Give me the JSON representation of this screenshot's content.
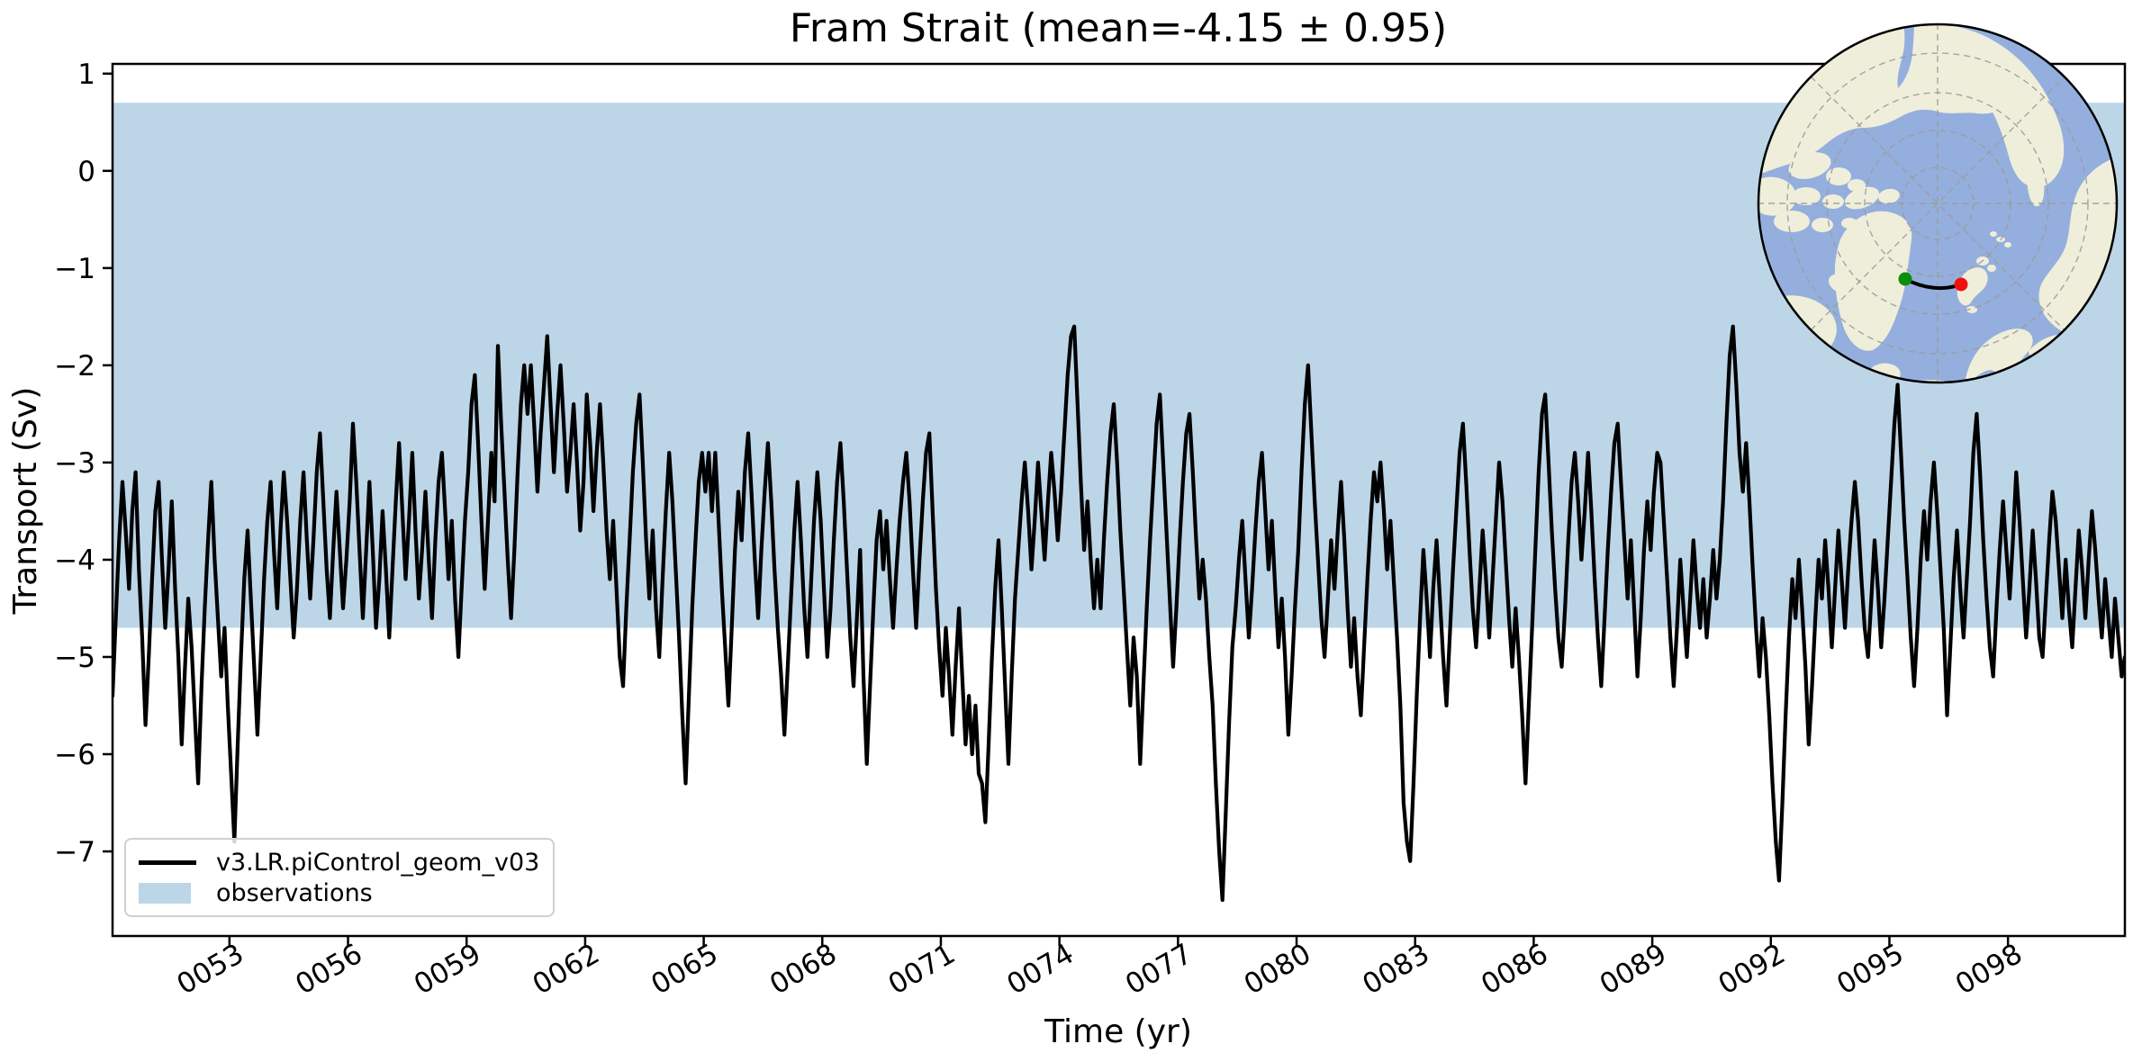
{
  "figure": {
    "background": "#FFFFFF"
  },
  "title": "Fram Strait (mean=-4.15 ± 0.95)",
  "chart_data": {
    "type": "line",
    "title": "Fram Strait (mean=-4.15 ± 0.95)",
    "xlabel": "Time (yr)",
    "ylabel": "Transport (Sv)",
    "xlim": [
      50.042,
      100.958
    ],
    "ylim": [
      -7.87,
      1.1
    ],
    "grid": false,
    "legend_position": "lower left",
    "stats": {
      "mean": -4.15,
      "std": 0.95
    },
    "yticks": [
      {
        "v": 1,
        "label": "1"
      },
      {
        "v": 0,
        "label": "0"
      },
      {
        "v": -1,
        "label": "−1"
      },
      {
        "v": -2,
        "label": "−2"
      },
      {
        "v": -3,
        "label": "−3"
      },
      {
        "v": -4,
        "label": "−4"
      },
      {
        "v": -5,
        "label": "−5"
      },
      {
        "v": -6,
        "label": "−6"
      },
      {
        "v": -7,
        "label": "−7"
      }
    ],
    "xticks": [
      {
        "v": 53,
        "label": "0053"
      },
      {
        "v": 56,
        "label": "0056"
      },
      {
        "v": 59,
        "label": "0059"
      },
      {
        "v": 62,
        "label": "0062"
      },
      {
        "v": 65,
        "label": "0065"
      },
      {
        "v": 68,
        "label": "0068"
      },
      {
        "v": 71,
        "label": "0071"
      },
      {
        "v": 74,
        "label": "0074"
      },
      {
        "v": 77,
        "label": "0077"
      },
      {
        "v": 80,
        "label": "0080"
      },
      {
        "v": 83,
        "label": "0083"
      },
      {
        "v": 86,
        "label": "0086"
      },
      {
        "v": 89,
        "label": "0089"
      },
      {
        "v": 92,
        "label": "0092"
      },
      {
        "v": 95,
        "label": "0095"
      },
      {
        "v": 98,
        "label": "0098"
      }
    ],
    "band": {
      "label": "observations",
      "color": "#BCD6E8",
      "y_min": -4.7,
      "y_max": 0.7
    },
    "series": [
      {
        "name": "v3.LR.piControl_geom_v03",
        "color": "#000000",
        "linewidth": 4.2,
        "x_start": 50.0417,
        "x_step": 0.0833333,
        "values": [
          -5.4,
          -4.6,
          -3.8,
          -3.2,
          -3.7,
          -4.3,
          -3.5,
          -3.1,
          -4.1,
          -4.8,
          -5.7,
          -5.0,
          -4.2,
          -3.5,
          -3.2,
          -4.0,
          -4.7,
          -4.1,
          -3.4,
          -4.3,
          -5.0,
          -5.9,
          -5.1,
          -4.4,
          -4.9,
          -5.6,
          -6.3,
          -5.3,
          -4.5,
          -3.8,
          -3.2,
          -4.0,
          -4.6,
          -5.2,
          -4.7,
          -5.5,
          -6.2,
          -6.9,
          -5.9,
          -5.0,
          -4.2,
          -3.7,
          -4.4,
          -5.1,
          -5.8,
          -5.0,
          -4.2,
          -3.6,
          -3.2,
          -3.9,
          -4.5,
          -3.7,
          -3.1,
          -3.6,
          -4.2,
          -4.8,
          -4.3,
          -3.6,
          -3.1,
          -3.8,
          -4.4,
          -3.8,
          -3.1,
          -2.7,
          -3.4,
          -4.1,
          -4.6,
          -3.9,
          -3.3,
          -3.9,
          -4.5,
          -4.0,
          -3.4,
          -2.6,
          -3.2,
          -3.9,
          -4.6,
          -3.9,
          -3.2,
          -3.9,
          -4.7,
          -4.2,
          -3.5,
          -4.1,
          -4.8,
          -4.1,
          -3.4,
          -2.8,
          -3.5,
          -4.2,
          -3.6,
          -2.9,
          -3.7,
          -4.4,
          -3.9,
          -3.3,
          -4.0,
          -4.6,
          -3.8,
          -3.2,
          -2.9,
          -3.5,
          -4.2,
          -3.6,
          -4.4,
          -5.0,
          -4.3,
          -3.6,
          -3.1,
          -2.4,
          -2.1,
          -2.8,
          -3.6,
          -4.3,
          -3.6,
          -2.9,
          -3.4,
          -1.8,
          -2.6,
          -3.3,
          -4.0,
          -4.6,
          -3.9,
          -3.1,
          -2.4,
          -2.0,
          -2.5,
          -2.0,
          -2.6,
          -3.3,
          -2.7,
          -2.2,
          -1.7,
          -2.4,
          -3.1,
          -2.5,
          -2.0,
          -2.6,
          -3.3,
          -2.9,
          -2.4,
          -3.0,
          -3.7,
          -3.2,
          -2.3,
          -2.8,
          -3.5,
          -2.9,
          -2.4,
          -3.0,
          -3.7,
          -4.2,
          -3.6,
          -4.3,
          -5.0,
          -5.3,
          -4.5,
          -3.8,
          -3.1,
          -2.6,
          -2.3,
          -3.0,
          -3.8,
          -4.4,
          -3.7,
          -4.5,
          -5.0,
          -4.2,
          -3.5,
          -2.9,
          -3.4,
          -4.1,
          -4.8,
          -5.6,
          -6.3,
          -5.4,
          -4.5,
          -3.8,
          -3.2,
          -2.9,
          -3.3,
          -2.9,
          -3.5,
          -2.9,
          -3.6,
          -4.3,
          -4.9,
          -5.5,
          -4.7,
          -3.9,
          -3.3,
          -3.8,
          -3.1,
          -2.7,
          -3.3,
          -4.0,
          -4.6,
          -3.9,
          -3.3,
          -2.8,
          -3.4,
          -4.1,
          -4.7,
          -5.2,
          -5.8,
          -5.1,
          -4.4,
          -3.7,
          -3.2,
          -3.8,
          -4.5,
          -5.0,
          -4.3,
          -3.6,
          -3.1,
          -3.6,
          -4.3,
          -5.0,
          -4.5,
          -3.8,
          -3.2,
          -2.8,
          -3.4,
          -4.1,
          -4.8,
          -5.3,
          -4.6,
          -3.9,
          -5.2,
          -6.1,
          -5.3,
          -4.5,
          -3.8,
          -3.5,
          -4.1,
          -3.6,
          -4.2,
          -4.7,
          -4.1,
          -3.6,
          -3.2,
          -2.9,
          -3.4,
          -4.1,
          -4.7,
          -4.0,
          -3.4,
          -2.9,
          -2.7,
          -3.5,
          -4.3,
          -4.9,
          -5.4,
          -4.7,
          -5.2,
          -5.8,
          -5.1,
          -4.5,
          -5.2,
          -5.9,
          -5.4,
          -6.0,
          -5.5,
          -6.2,
          -6.3,
          -6.7,
          -5.9,
          -5.0,
          -4.3,
          -3.8,
          -4.5,
          -5.3,
          -6.1,
          -5.2,
          -4.4,
          -3.9,
          -3.4,
          -3.0,
          -3.5,
          -4.1,
          -3.6,
          -3.0,
          -3.5,
          -4.0,
          -3.4,
          -2.9,
          -3.3,
          -3.8,
          -3.3,
          -2.7,
          -2.1,
          -1.7,
          -1.6,
          -2.4,
          -3.2,
          -3.9,
          -3.4,
          -4.0,
          -4.5,
          -4.0,
          -4.5,
          -3.8,
          -3.2,
          -2.7,
          -2.4,
          -3.0,
          -3.7,
          -4.3,
          -4.9,
          -5.5,
          -4.8,
          -5.2,
          -6.1,
          -5.3,
          -4.5,
          -3.8,
          -3.2,
          -2.6,
          -2.3,
          -3.0,
          -3.7,
          -4.4,
          -5.1,
          -4.5,
          -3.8,
          -3.2,
          -2.7,
          -2.5,
          -3.1,
          -3.8,
          -4.4,
          -4.0,
          -4.4,
          -5.0,
          -5.5,
          -6.3,
          -7.0,
          -7.5,
          -6.6,
          -5.7,
          -4.9,
          -4.5,
          -4.0,
          -3.6,
          -4.2,
          -4.8,
          -4.3,
          -3.7,
          -3.2,
          -2.9,
          -3.5,
          -4.1,
          -3.6,
          -4.3,
          -4.9,
          -4.4,
          -5.0,
          -5.8,
          -5.2,
          -4.5,
          -3.9,
          -3.1,
          -2.4,
          -2.0,
          -2.7,
          -3.4,
          -4.0,
          -4.6,
          -5.0,
          -4.4,
          -3.8,
          -4.3,
          -3.7,
          -3.2,
          -3.8,
          -4.5,
          -5.1,
          -4.6,
          -5.2,
          -5.6,
          -4.9,
          -4.2,
          -3.6,
          -3.1,
          -3.4,
          -3.0,
          -3.5,
          -4.1,
          -3.6,
          -4.2,
          -4.8,
          -5.5,
          -6.5,
          -6.9,
          -7.1,
          -6.3,
          -5.4,
          -4.6,
          -3.9,
          -4.4,
          -5.0,
          -4.3,
          -3.8,
          -4.4,
          -5.0,
          -5.5,
          -4.8,
          -4.1,
          -3.5,
          -2.9,
          -2.6,
          -3.2,
          -3.9,
          -4.5,
          -4.9,
          -4.3,
          -3.7,
          -4.2,
          -4.8,
          -4.2,
          -3.6,
          -3.0,
          -3.4,
          -4.0,
          -4.6,
          -5.1,
          -4.5,
          -5.0,
          -5.6,
          -6.3,
          -5.5,
          -4.7,
          -3.9,
          -3.1,
          -2.5,
          -2.3,
          -3.0,
          -3.7,
          -4.3,
          -4.8,
          -5.1,
          -4.5,
          -3.8,
          -3.2,
          -2.9,
          -3.4,
          -4.0,
          -3.5,
          -2.9,
          -3.5,
          -4.2,
          -4.8,
          -5.3,
          -4.6,
          -3.9,
          -3.3,
          -2.8,
          -2.6,
          -3.2,
          -3.8,
          -4.4,
          -3.8,
          -4.5,
          -5.2,
          -4.6,
          -3.9,
          -3.4,
          -3.9,
          -3.3,
          -2.9,
          -3.0,
          -3.6,
          -4.2,
          -4.8,
          -5.3,
          -4.7,
          -4.0,
          -4.5,
          -5.0,
          -4.4,
          -3.8,
          -4.3,
          -4.7,
          -4.2,
          -4.8,
          -4.4,
          -3.9,
          -4.4,
          -4.0,
          -3.4,
          -2.6,
          -1.9,
          -1.6,
          -2.2,
          -2.9,
          -3.3,
          -2.8,
          -3.4,
          -4.1,
          -4.7,
          -5.2,
          -4.6,
          -5.0,
          -5.6,
          -6.3,
          -6.9,
          -7.3,
          -6.5,
          -5.6,
          -4.8,
          -4.2,
          -4.6,
          -4.0,
          -4.5,
          -5.1,
          -5.9,
          -5.3,
          -4.6,
          -4.0,
          -4.4,
          -3.8,
          -4.3,
          -4.9,
          -4.3,
          -3.7,
          -4.2,
          -4.7,
          -4.1,
          -3.6,
          -3.2,
          -3.6,
          -4.2,
          -4.7,
          -5.0,
          -4.4,
          -3.8,
          -4.3,
          -4.9,
          -4.4,
          -3.8,
          -3.2,
          -2.6,
          -2.2,
          -2.9,
          -3.6,
          -4.2,
          -4.8,
          -5.3,
          -4.7,
          -4.0,
          -3.5,
          -4.0,
          -3.4,
          -3.0,
          -3.5,
          -4.1,
          -4.7,
          -5.6,
          -4.9,
          -4.2,
          -3.7,
          -4.3,
          -4.8,
          -4.2,
          -3.6,
          -2.9,
          -2.5,
          -3.1,
          -3.8,
          -4.4,
          -4.9,
          -5.2,
          -4.5,
          -3.9,
          -3.4,
          -3.9,
          -4.4,
          -3.8,
          -3.1,
          -3.6,
          -4.2,
          -4.8,
          -4.3,
          -3.7,
          -4.2,
          -4.8,
          -5.0,
          -4.4,
          -3.8,
          -3.3,
          -3.6,
          -4.1,
          -4.6,
          -4.0,
          -4.5,
          -4.9,
          -4.3,
          -3.7,
          -4.1,
          -4.6,
          -4.0,
          -3.5,
          -3.9,
          -4.4,
          -4.8,
          -4.2,
          -4.6,
          -5.0,
          -4.4,
          -4.8,
          -5.2,
          -5.0
        ]
      }
    ]
  },
  "legend": {
    "entries": [
      {
        "type": "line",
        "label": "v3.LR.piControl_geom_v03",
        "color": "#000000"
      },
      {
        "type": "patch",
        "label": "observations",
        "color": "#BCD6E8"
      }
    ]
  },
  "inset_map": {
    "ocean_color": "#94AFDD",
    "land_color": "#EFEEDB",
    "graticule_color": "#9B9B9B",
    "outline_color": "#000000",
    "section": {
      "line_color": "#000000",
      "start_dot_color": "#0A8F0A",
      "end_dot_color": "#F01010"
    }
  }
}
